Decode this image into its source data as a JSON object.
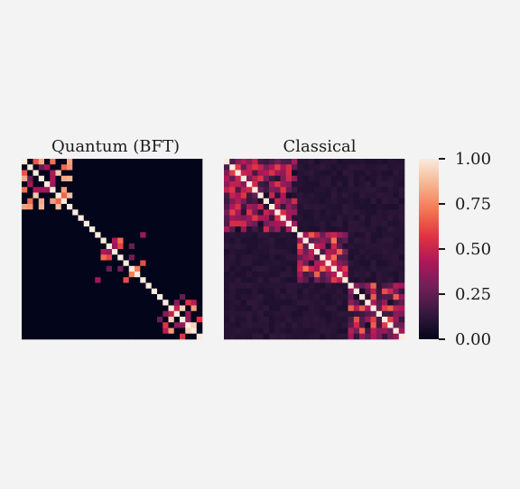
{
  "chart_data": {
    "type": "heatmap",
    "panels": [
      {
        "title": "Quantum (BFT)",
        "n": 32,
        "off_block_level": 0.0,
        "blocks": [
          {
            "start": 0,
            "end": 9,
            "level": 0.55
          },
          {
            "start": 13,
            "end": 22,
            "level": 0.6
          },
          {
            "start": 24,
            "end": 32,
            "level": 0.6
          }
        ]
      },
      {
        "title": "Classical",
        "n": 32,
        "off_block_level": 0.1,
        "blocks": [
          {
            "start": 0,
            "end": 13,
            "level": 0.35
          },
          {
            "start": 13,
            "end": 22,
            "level": 0.45
          },
          {
            "start": 22,
            "end": 32,
            "level": 0.4
          }
        ]
      }
    ],
    "colorbar": {
      "min": 0.0,
      "max": 1.0,
      "ticks": [
        "0.00",
        "0.25",
        "0.50",
        "0.75",
        "1.00"
      ],
      "colormap": "rocket",
      "colormap_stops": [
        "#03051a",
        "#35193e",
        "#701f57",
        "#ad1759",
        "#e13342",
        "#f37651",
        "#f6b48f",
        "#faebdd"
      ]
    }
  }
}
